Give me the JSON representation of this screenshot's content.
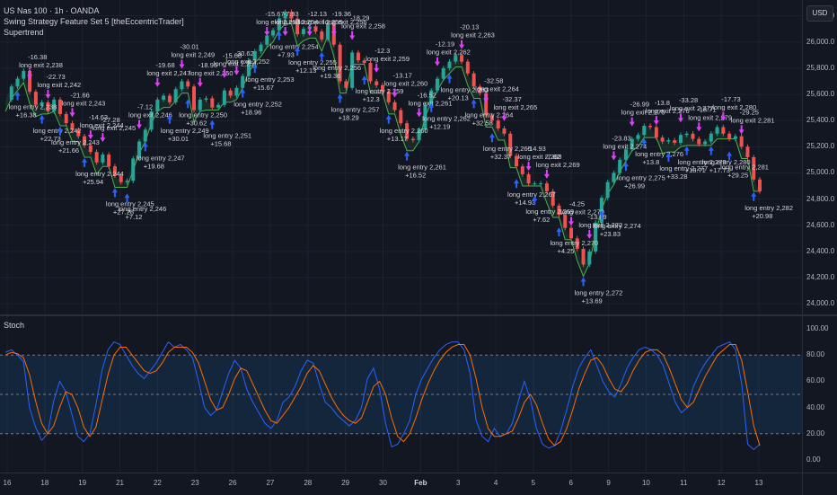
{
  "header": {
    "symbol_line": "US Nas 100 · 1h · OANDA",
    "strategy_line": "Swing Strategy Feature Set 5 [theEccentricTrader]",
    "indicator_line": "Supertrend"
  },
  "stoch_pane": {
    "title": "Stoch"
  },
  "price_scale": {
    "currency_button": "USD",
    "ticks": [
      "26,200.0",
      "26,000.0",
      "25,800.0",
      "25,600.0",
      "25,400.0",
      "25,200.0",
      "25,000.0",
      "24,800.0",
      "24,600.0",
      "24,400.0",
      "24,200.0",
      "24,000.0"
    ]
  },
  "stoch_scale": {
    "ticks": [
      "100.00",
      "80.00",
      "60.00",
      "40.00",
      "20.00",
      "0.00"
    ]
  },
  "time_axis": {
    "labels": [
      "16",
      "18",
      "19",
      "21",
      "22",
      "23",
      "26",
      "27",
      "28",
      "29",
      "30",
      "Feb",
      "3",
      "4",
      "5",
      "6",
      "9",
      "10",
      "11",
      "12",
      "13"
    ]
  },
  "colors": {
    "background": "#131722",
    "up_candle": "#26a69a",
    "down_candle": "#ef5350",
    "entry_arrow": "#2962ff",
    "exit_arrow": "#e040fb",
    "supertrend": "#4caf50",
    "stoch_k": "#2962ff",
    "stoch_d": "#ff6d00"
  },
  "icons": {
    "entry": "arrow-up-icon",
    "exit": "arrow-down-icon"
  },
  "chart_data": {
    "type": "line",
    "price_range": [
      23960,
      26280
    ],
    "price": [
      25560,
      25660,
      25720,
      25780,
      25620,
      25520,
      25540,
      25470,
      25560,
      25450,
      25380,
      25330,
      25280,
      25210,
      25160,
      25080,
      25140,
      25050,
      24980,
      24930,
      24940,
      25110,
      25240,
      25330,
      25470,
      25560,
      25590,
      25540,
      25640,
      25700,
      25660,
      25480,
      25560,
      25570,
      25500,
      25520,
      25630,
      25590,
      25650,
      25740,
      25860,
      25930,
      25980,
      26050,
      26090,
      26180,
      26230,
      26180,
      26060,
      26100,
      26120,
      26080,
      26020,
      26140,
      25980,
      25700,
      25650,
      25920,
      25860,
      25840,
      25700,
      25670,
      25620,
      25540,
      25480,
      25380,
      25260,
      25250,
      25330,
      25520,
      25630,
      25720,
      25800,
      25850,
      25900,
      25850,
      25760,
      25660,
      25610,
      25440,
      25400,
      25340,
      25300,
      25130,
      25050,
      24990,
      24920,
      24920,
      24920,
      24860,
      24750,
      24680,
      24580,
      24500,
      24420,
      24300,
      24400,
      24620,
      24810,
      24930,
      25000,
      25100,
      25180,
      25260,
      25290,
      25360,
      25350,
      25270,
      25240,
      25250,
      25230,
      25290,
      25300,
      25260,
      25220,
      25240,
      25300,
      25350,
      25300,
      25260,
      25280,
      25200,
      25120,
      24950,
      24860
    ],
    "stoch": {
      "range": [
        0,
        100
      ],
      "guides": [
        80,
        50,
        20
      ],
      "k": [
        82,
        84,
        80,
        75,
        40,
        25,
        15,
        20,
        45,
        60,
        52,
        35,
        18,
        14,
        20,
        42,
        68,
        84,
        90,
        88,
        80,
        72,
        66,
        62,
        68,
        74,
        82,
        90,
        86,
        88,
        84,
        78,
        60,
        40,
        34,
        38,
        52,
        66,
        76,
        70,
        54,
        44,
        36,
        28,
        24,
        30,
        44,
        48,
        56,
        68,
        76,
        74,
        58,
        44,
        40,
        34,
        30,
        26,
        30,
        40,
        62,
        70,
        54,
        28,
        10,
        12,
        20,
        30,
        50,
        62,
        70,
        78,
        84,
        88,
        90,
        90,
        84,
        66,
        30,
        18,
        14,
        24,
        18,
        20,
        28,
        45,
        60,
        46,
        24,
        12,
        9,
        11,
        22,
        38,
        56,
        70,
        78,
        84,
        72,
        60,
        52,
        48,
        58,
        70,
        78,
        84,
        86,
        84,
        80,
        72,
        58,
        44,
        36,
        40,
        56,
        66,
        74,
        80,
        86,
        88,
        90,
        84,
        58,
        12,
        8,
        12
      ],
      "d": [
        80,
        82,
        81,
        78,
        65,
        45,
        28,
        20,
        26,
        40,
        52,
        50,
        40,
        25,
        18,
        25,
        45,
        65,
        80,
        86,
        86,
        80,
        74,
        68,
        66,
        68,
        74,
        82,
        86,
        86,
        86,
        82,
        74,
        60,
        46,
        38,
        40,
        50,
        62,
        70,
        68,
        58,
        48,
        38,
        30,
        28,
        34,
        40,
        48,
        56,
        66,
        72,
        68,
        58,
        48,
        40,
        34,
        30,
        28,
        32,
        44,
        56,
        60,
        50,
        32,
        18,
        14,
        20,
        32,
        46,
        58,
        68,
        76,
        82,
        86,
        88,
        88,
        80,
        62,
        40,
        24,
        18,
        18,
        20,
        22,
        32,
        44,
        50,
        42,
        28,
        16,
        11,
        14,
        24,
        38,
        54,
        66,
        76,
        78,
        72,
        62,
        54,
        52,
        58,
        68,
        76,
        82,
        84,
        84,
        80,
        70,
        58,
        46,
        40,
        44,
        54,
        64,
        72,
        80,
        84,
        88,
        88,
        76,
        52,
        26,
        11
      ]
    },
    "trades": [
      {
        "type": "entry",
        "label": "long entry 2,238",
        "pnl": "+16.38"
      },
      {
        "type": "exit",
        "label": "long exit 2,238",
        "pnl": "-16.38"
      },
      {
        "type": "entry",
        "label": "long entry 2,242",
        "pnl": "+22.73"
      },
      {
        "type": "exit",
        "label": "long exit 2,242",
        "pnl": "-22.73"
      },
      {
        "type": "entry",
        "label": "long entry 2,243",
        "pnl": "+21.66"
      },
      {
        "type": "exit",
        "label": "long exit 2,243",
        "pnl": "-21.66"
      },
      {
        "type": "entry",
        "label": "long entry 2,244",
        "pnl": "+25.94"
      },
      {
        "type": "exit",
        "label": "long exit 2,244",
        "pnl": "-14.63"
      },
      {
        "type": "exit",
        "label": "long exit 2,245",
        "pnl": "-27.28"
      },
      {
        "type": "entry",
        "label": "long entry 2,245",
        "pnl": "+27.28"
      },
      {
        "type": "entry",
        "label": "long entry 2,246",
        "pnl": "+7.12"
      },
      {
        "type": "exit",
        "label": "long exit 2,246",
        "pnl": "-7.12"
      },
      {
        "type": "entry",
        "label": "long entry 2,247",
        "pnl": "+19.68"
      },
      {
        "type": "exit",
        "label": "long exit 2,247",
        "pnl": "-19.68"
      },
      {
        "type": "entry",
        "label": "long entry 2,249",
        "pnl": "+30.01"
      },
      {
        "type": "exit",
        "label": "long exit 2,249",
        "pnl": "-30.01"
      },
      {
        "type": "entry",
        "label": "long entry 2,250",
        "pnl": "+30.62"
      },
      {
        "type": "exit",
        "label": "long exit 2,250",
        "pnl": "-18.96"
      },
      {
        "type": "entry",
        "label": "long entry 2,251",
        "pnl": "+15.68"
      },
      {
        "type": "exit",
        "label": "long exit 2,251",
        "pnl": "-15.68"
      },
      {
        "type": "exit",
        "label": "long exit 2,252",
        "pnl": "-30.62"
      },
      {
        "type": "entry",
        "label": "long entry 2,252",
        "pnl": "+18.96"
      },
      {
        "type": "entry",
        "label": "long entry 2,253",
        "pnl": "+15.67"
      },
      {
        "type": "exit",
        "label": "long exit 2,253",
        "pnl": "-15.67"
      },
      {
        "type": "entry",
        "label": "long entry 2,254",
        "pnl": "+7.93"
      },
      {
        "type": "exit",
        "label": "long exit 2,254",
        "pnl": "-7.93"
      },
      {
        "type": "entry",
        "label": "long entry 2,255",
        "pnl": "+12.13"
      },
      {
        "type": "exit",
        "label": "long exit 2,255",
        "pnl": "-12.13"
      },
      {
        "type": "entry",
        "label": "long entry 2,256",
        "pnl": "+19.36"
      },
      {
        "type": "exit",
        "label": "long exit 2,256",
        "pnl": "-19.36"
      },
      {
        "type": "entry",
        "label": "long entry 2,257",
        "pnl": "+18.29"
      },
      {
        "type": "exit",
        "label": "long exit 2,258",
        "pnl": "-18.29"
      },
      {
        "type": "entry",
        "label": "long entry 2,259",
        "pnl": "+12.3"
      },
      {
        "type": "exit",
        "label": "long exit 2,259",
        "pnl": "-12.3"
      },
      {
        "type": "entry",
        "label": "long entry 2,260",
        "pnl": "+13.17"
      },
      {
        "type": "exit",
        "label": "long exit 2,260",
        "pnl": "-13.17"
      },
      {
        "type": "entry",
        "label": "long entry 2,261",
        "pnl": "+16.52"
      },
      {
        "type": "exit",
        "label": "long exit 2,261",
        "pnl": "-16.52"
      },
      {
        "type": "entry",
        "label": "long entry 2,262",
        "pnl": "+12.19"
      },
      {
        "type": "exit",
        "label": "long exit 2,262",
        "pnl": "-12.19"
      },
      {
        "type": "entry",
        "label": "long entry 2,263",
        "pnl": "+20.13"
      },
      {
        "type": "exit",
        "label": "long exit 2,263",
        "pnl": "-20.13"
      },
      {
        "type": "entry",
        "label": "long entry 2,264",
        "pnl": "+32.58"
      },
      {
        "type": "exit",
        "label": "long exit 2,264",
        "pnl": "-32.58"
      },
      {
        "type": "entry",
        "label": "long entry 2,265",
        "pnl": "+32.37"
      },
      {
        "type": "exit",
        "label": "long exit 2,265",
        "pnl": "-32.37"
      },
      {
        "type": "entry",
        "label": "long entry 2,267",
        "pnl": "+14.93"
      },
      {
        "type": "exit",
        "label": "long exit 2,268",
        "pnl": "-14.93"
      },
      {
        "type": "entry",
        "label": "long entry 2,269",
        "pnl": "+7.62"
      },
      {
        "type": "exit",
        "label": "long exit 2,269",
        "pnl": "-7.62"
      },
      {
        "type": "entry",
        "label": "long entry 2,270",
        "pnl": "+4.25"
      },
      {
        "type": "exit",
        "label": "long exit 2,270",
        "pnl": "-4.25"
      },
      {
        "type": "entry",
        "label": "long entry 2,272",
        "pnl": "+13.69"
      },
      {
        "type": "exit",
        "label": "long exit 2,272",
        "pnl": "-13.69"
      },
      {
        "type": "entry",
        "label": "long entry 2,274",
        "pnl": "+23.83"
      },
      {
        "type": "exit",
        "label": "long exit 2,274",
        "pnl": "-23.83"
      },
      {
        "type": "entry",
        "label": "long entry 2,275",
        "pnl": "+26.99"
      },
      {
        "type": "exit",
        "label": "long exit 2,275",
        "pnl": "-26.99"
      },
      {
        "type": "entry",
        "label": "long entry 2,276",
        "pnl": "+13.8"
      },
      {
        "type": "exit",
        "label": "long exit 2,276",
        "pnl": "-13.8"
      },
      {
        "type": "entry",
        "label": "long entry 2,277",
        "pnl": "+33.28"
      },
      {
        "type": "exit",
        "label": "long exit 2,277",
        "pnl": "-33.28"
      },
      {
        "type": "entry",
        "label": "long entry 2,279",
        "pnl": "+18.71"
      },
      {
        "type": "exit",
        "label": "long exit 2,279",
        "pnl": "-18.71"
      },
      {
        "type": "entry",
        "label": "long entry 2,280",
        "pnl": "+17.73"
      },
      {
        "type": "exit",
        "label": "long exit 2,280",
        "pnl": "-17.73"
      },
      {
        "type": "entry",
        "label": "long entry 2,281",
        "pnl": "+29.25"
      },
      {
        "type": "exit",
        "label": "long exit 2,281",
        "pnl": "-29.25"
      },
      {
        "type": "entry",
        "label": "long entry 2,282",
        "pnl": "+20.98"
      }
    ]
  }
}
